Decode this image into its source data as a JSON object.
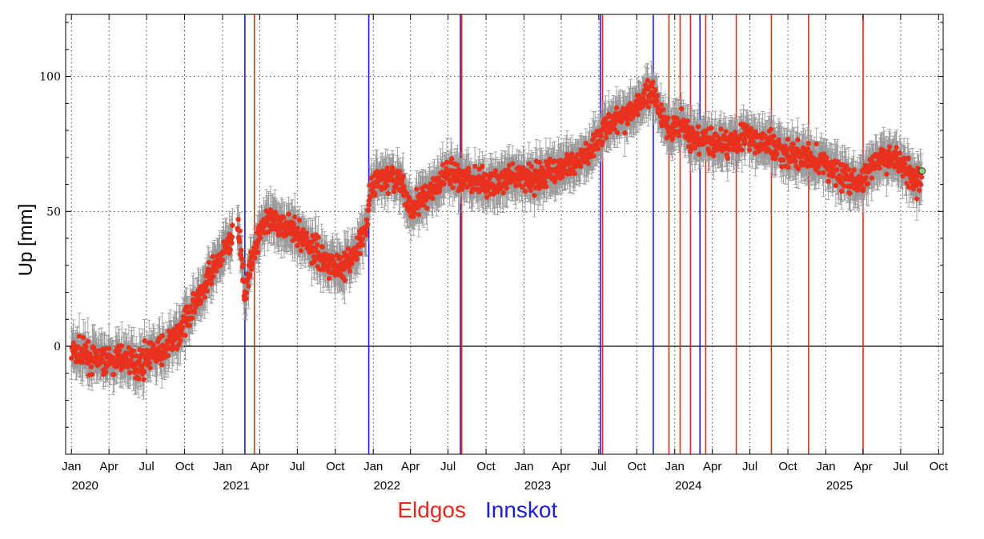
{
  "chart_data": {
    "type": "scatter",
    "ylabel": "Up [mm]",
    "ylim": [
      -40,
      123
    ],
    "xlim": [
      "2019-12-18",
      "2025-10-12"
    ],
    "yticks": [
      0,
      50,
      100
    ],
    "grid": true,
    "x_ticks": [
      {
        "date": "2020-01-01",
        "label": "Jan"
      },
      {
        "date": "2020-04-01",
        "label": "Apr"
      },
      {
        "date": "2020-07-01",
        "label": "Jul"
      },
      {
        "date": "2020-10-01",
        "label": "Oct"
      },
      {
        "date": "2021-01-01",
        "label": "Jan"
      },
      {
        "date": "2021-04-01",
        "label": "Apr"
      },
      {
        "date": "2021-07-01",
        "label": "Jul"
      },
      {
        "date": "2021-10-01",
        "label": "Oct"
      },
      {
        "date": "2022-01-01",
        "label": "Jan"
      },
      {
        "date": "2022-04-01",
        "label": "Apr"
      },
      {
        "date": "2022-07-01",
        "label": "Jul"
      },
      {
        "date": "2022-10-01",
        "label": "Oct"
      },
      {
        "date": "2023-01-01",
        "label": "Jan"
      },
      {
        "date": "2023-04-01",
        "label": "Apr"
      },
      {
        "date": "2023-07-01",
        "label": "Jul"
      },
      {
        "date": "2023-10-01",
        "label": "Oct"
      },
      {
        "date": "2024-01-01",
        "label": "Jan"
      },
      {
        "date": "2024-04-01",
        "label": "Apr"
      },
      {
        "date": "2024-07-01",
        "label": "Jul"
      },
      {
        "date": "2024-10-01",
        "label": "Oct"
      },
      {
        "date": "2025-01-01",
        "label": "Jan"
      },
      {
        "date": "2025-04-01",
        "label": "Apr"
      },
      {
        "date": "2025-07-01",
        "label": "Jul"
      },
      {
        "date": "2025-10-01",
        "label": "Oct"
      }
    ],
    "year_labels": [
      {
        "date": "2020-01-01",
        "label": "2020"
      },
      {
        "date": "2021-01-01",
        "label": "2021"
      },
      {
        "date": "2022-01-01",
        "label": "2022"
      },
      {
        "date": "2023-01-01",
        "label": "2023"
      },
      {
        "date": "2024-01-01",
        "label": "2024"
      },
      {
        "date": "2025-01-01",
        "label": "2025"
      }
    ],
    "series_color": "#e8321e",
    "errorbar_color": "#999999",
    "mean_track": [
      [
        "2020-01-01",
        -2
      ],
      [
        "2020-02-15",
        -4
      ],
      [
        "2020-04-01",
        -6
      ],
      [
        "2020-05-15",
        -4
      ],
      [
        "2020-06-10",
        -7
      ],
      [
        "2020-07-01",
        -4
      ],
      [
        "2020-08-15",
        -1
      ],
      [
        "2020-09-15",
        4
      ],
      [
        "2020-10-10",
        12
      ],
      [
        "2020-11-15",
        20
      ],
      [
        "2020-12-15",
        30
      ],
      [
        "2021-01-15",
        38
      ],
      [
        "2021-02-10",
        44
      ],
      [
        "2021-02-25",
        18
      ],
      [
        "2021-03-10",
        30
      ],
      [
        "2021-04-05",
        45
      ],
      [
        "2021-05-15",
        46
      ],
      [
        "2021-06-15",
        44
      ],
      [
        "2021-07-15",
        40
      ],
      [
        "2021-08-15",
        35
      ],
      [
        "2021-09-15",
        31
      ],
      [
        "2021-10-20",
        30
      ],
      [
        "2021-11-20",
        34
      ],
      [
        "2021-12-15",
        44
      ],
      [
        "2021-12-25",
        58
      ],
      [
        "2022-01-15",
        62
      ],
      [
        "2022-03-01",
        62
      ],
      [
        "2022-04-01",
        52
      ],
      [
        "2022-05-15",
        56
      ],
      [
        "2022-07-01",
        64
      ],
      [
        "2022-08-10",
        62
      ],
      [
        "2022-10-01",
        60
      ],
      [
        "2022-12-01",
        62
      ],
      [
        "2023-02-01",
        63
      ],
      [
        "2023-04-01",
        66
      ],
      [
        "2023-06-01",
        70
      ],
      [
        "2023-07-10",
        80
      ],
      [
        "2023-08-15",
        84
      ],
      [
        "2023-09-15",
        87
      ],
      [
        "2023-10-20",
        92
      ],
      [
        "2023-11-10",
        95
      ],
      [
        "2023-11-25",
        87
      ],
      [
        "2023-12-20",
        80
      ],
      [
        "2024-01-20",
        83
      ],
      [
        "2024-02-10",
        76
      ],
      [
        "2024-03-15",
        76
      ],
      [
        "2024-05-01",
        75
      ],
      [
        "2024-06-15",
        78
      ],
      [
        "2024-07-20",
        76
      ],
      [
        "2024-08-20",
        75
      ],
      [
        "2024-10-01",
        71
      ],
      [
        "2024-11-20",
        70
      ],
      [
        "2025-01-01",
        67
      ],
      [
        "2025-02-15",
        63
      ],
      [
        "2025-03-20",
        60
      ],
      [
        "2025-05-01",
        68
      ],
      [
        "2025-06-15",
        70
      ],
      [
        "2025-07-20",
        65
      ],
      [
        "2025-08-15",
        60
      ]
    ],
    "last_point": {
      "date": "2025-08-22",
      "y": 65,
      "color": "#8fd07a"
    },
    "event_lines": {
      "eldgos": [
        "2021-03-19",
        "2022-08-03",
        "2023-07-10",
        "2023-12-18",
        "2024-01-14",
        "2024-02-08",
        "2024-03-16",
        "2024-05-29",
        "2024-08-22",
        "2024-11-20",
        "2025-04-01"
      ],
      "innskot": [
        "2021-02-24",
        "2021-12-21",
        "2022-07-31",
        "2023-07-05",
        "2023-11-10",
        "2024-03-02"
      ]
    },
    "legend": {
      "eldgos": {
        "label": "Eldgos",
        "color": "#e8281e"
      },
      "innskot": {
        "label": "Innskot",
        "color": "#1c1ce0"
      }
    }
  }
}
